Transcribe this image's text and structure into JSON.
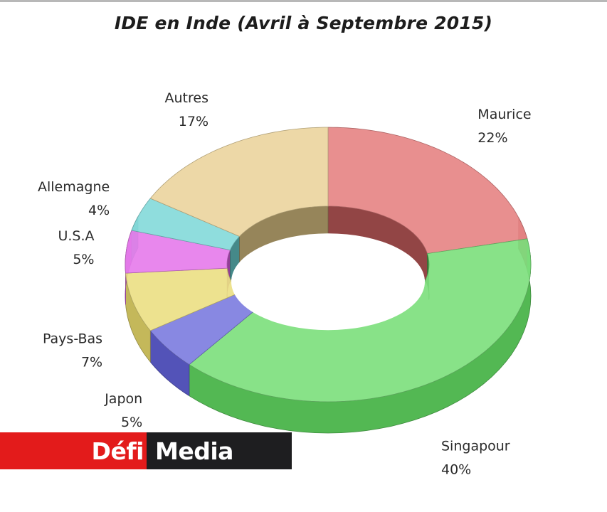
{
  "chart_data": {
    "type": "pie",
    "title": "IDE en Inde (Avril à Septembre 2015)",
    "slices": [
      {
        "name": "Maurice",
        "label": "22%",
        "value": 22,
        "color": "#e06a6a"
      },
      {
        "name": "Singapour",
        "label": "40%",
        "value": 40,
        "color": "#62d862"
      },
      {
        "name": "Japon",
        "label": "5%",
        "value": 5,
        "color": "#6262d8"
      },
      {
        "name": "Pays-Bas",
        "label": "7%",
        "value": 7,
        "color": "#e6d86a"
      },
      {
        "name": "U.S.A",
        "label": "5%",
        "value": 5,
        "color": "#e060e6"
      },
      {
        "name": "Allemagne",
        "label": "4%",
        "value": 4,
        "color": "#6ad2d2"
      },
      {
        "name": "Autres",
        "label": "17%",
        "value": 17,
        "color": "#e6cc8a"
      }
    ],
    "style": "3d-doughnut",
    "legend": "none"
  },
  "logo": {
    "part1": "Défi",
    "part2": "Media"
  }
}
